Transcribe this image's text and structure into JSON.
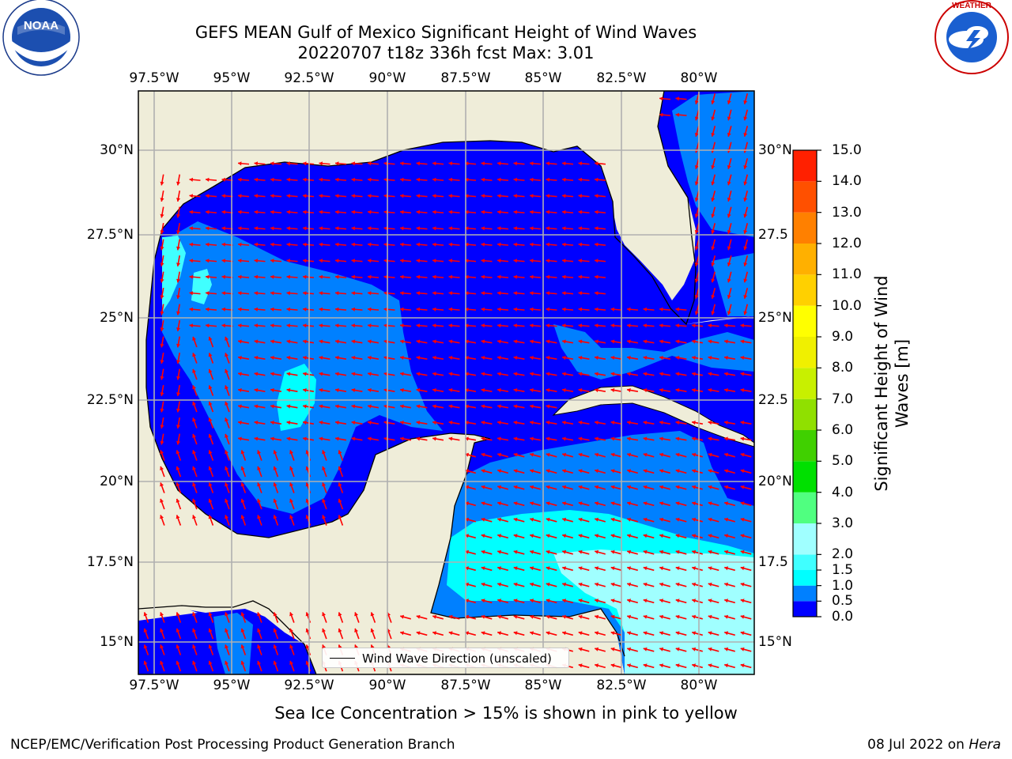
{
  "title": {
    "line1": "GEFS MEAN Gulf of Mexico Significant Height of Wind Waves",
    "line2": "20220707 t18z 336h fcst   Max: 3.01"
  },
  "logos": {
    "left": {
      "name": "noaa-logo",
      "text": "NOAA",
      "ring_text": "NATIONAL OCEANIC AND ATMOSPHERIC ADMINISTRATION · U.S. DEPARTMENT OF COMMERCE"
    },
    "right": {
      "name": "nws-logo",
      "ring_text": "NATIONAL WEATHER SERVICE"
    }
  },
  "map": {
    "lon_ticks": [
      "97.5°W",
      "95°W",
      "92.5°W",
      "90°W",
      "87.5°W",
      "85°W",
      "82.5°W",
      "80°W"
    ],
    "lat_ticks_left": [
      "30°N",
      "27.5°N",
      "25°N",
      "22.5°N",
      "20°N",
      "17.5°N",
      "15°N"
    ],
    "lat_ticks_right": [
      "30°N",
      "27.5",
      "25°N",
      "22.5",
      "20°N",
      "17.5",
      "15°N"
    ],
    "land_color": "#efedd9",
    "grid": true,
    "arrow_color": "#ff0000"
  },
  "legend": {
    "label": "Wind Wave Direction (unscaled)"
  },
  "colorbar": {
    "label": "Significant Height of Wind Waves [m]",
    "levels": [
      "0.0",
      "0.5",
      "1.0",
      "1.5",
      "2.0",
      "3.0",
      "4.0",
      "5.0",
      "6.0",
      "7.0",
      "8.0",
      "9.0",
      "10.0",
      "11.0",
      "12.0",
      "13.0",
      "14.0",
      "15.0"
    ],
    "colors": [
      "#0000ff",
      "#0080ff",
      "#00ffff",
      "#40ffff",
      "#a0ffff",
      "#50ff80",
      "#00e000",
      "#40d000",
      "#90e000",
      "#c8f000",
      "#f0f000",
      "#ffff00",
      "#ffd000",
      "#ffb000",
      "#ff8000",
      "#ff5000",
      "#ff2000"
    ]
  },
  "footnote": "Sea Ice Concentration > 15% is shown in pink to yellow",
  "credit_left": "NCEP/EMC/Verification Post Processing Product Generation Branch",
  "credit_right_prefix": "08 Jul 2022 on ",
  "credit_right_machine": "Hera"
}
